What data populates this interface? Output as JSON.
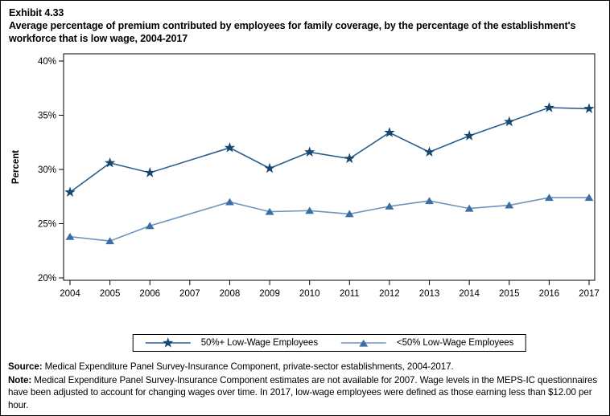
{
  "header": {
    "exhibit": "Exhibit 4.33",
    "title": "Average percentage of premium contributed by employees for family coverage, by the percentage of the establishment's workforce that is low wage, 2004-2017"
  },
  "chart_data": {
    "type": "line",
    "title": "Average percentage of premium contributed by employees for family coverage, by the percentage of the establishment's workforce that is low wage, 2004-2017",
    "categories": [
      "2004",
      "2005",
      "2006",
      "2007",
      "2008",
      "2009",
      "2010",
      "2011",
      "2012",
      "2013",
      "2014",
      "2015",
      "2016",
      "2017"
    ],
    "series": [
      {
        "name": "50%+ Low-Wage Employees",
        "marker": "star",
        "marker_color": "#17466E",
        "line_color": "#2A5E8C",
        "values": [
          27.9,
          30.6,
          29.7,
          null,
          32.0,
          30.1,
          31.6,
          31.0,
          33.4,
          31.6,
          33.1,
          34.4,
          35.7,
          35.6
        ]
      },
      {
        "name": "<50% Low-Wage Employees",
        "marker": "triangle",
        "marker_color": "#3A6EA5",
        "line_color": "#6E94BE",
        "values": [
          23.8,
          23.4,
          24.8,
          null,
          27.0,
          26.1,
          26.2,
          25.9,
          26.6,
          27.1,
          26.4,
          26.7,
          27.4,
          27.4
        ]
      }
    ],
    "xlabel": "",
    "ylabel": "Percent",
    "ylim": [
      20,
      40
    ],
    "ytick_labels": [
      "20%",
      "25%",
      "30%",
      "35%",
      "40%"
    ],
    "ytick_values": [
      20,
      25,
      30,
      35,
      40
    ],
    "grid": false,
    "legend_position": "bottom-center",
    "note_gap_year": "2007",
    "axis_color": "#000000"
  },
  "footer": {
    "source_label": "Source:",
    "source_text": " Medical Expenditure Panel Survey-Insurance Component, private-sector establishments, 2004-2017.",
    "note_label": "Note:",
    "note_text": " Medical Expenditure Panel Survey-Insurance Component estimates are not available for 2007. Wage levels in the MEPS-IC questionnaires have been adjusted to account for changing wages over time.  In 2017, low-wage employees were defined as those earning less than $12.00 per hour."
  }
}
